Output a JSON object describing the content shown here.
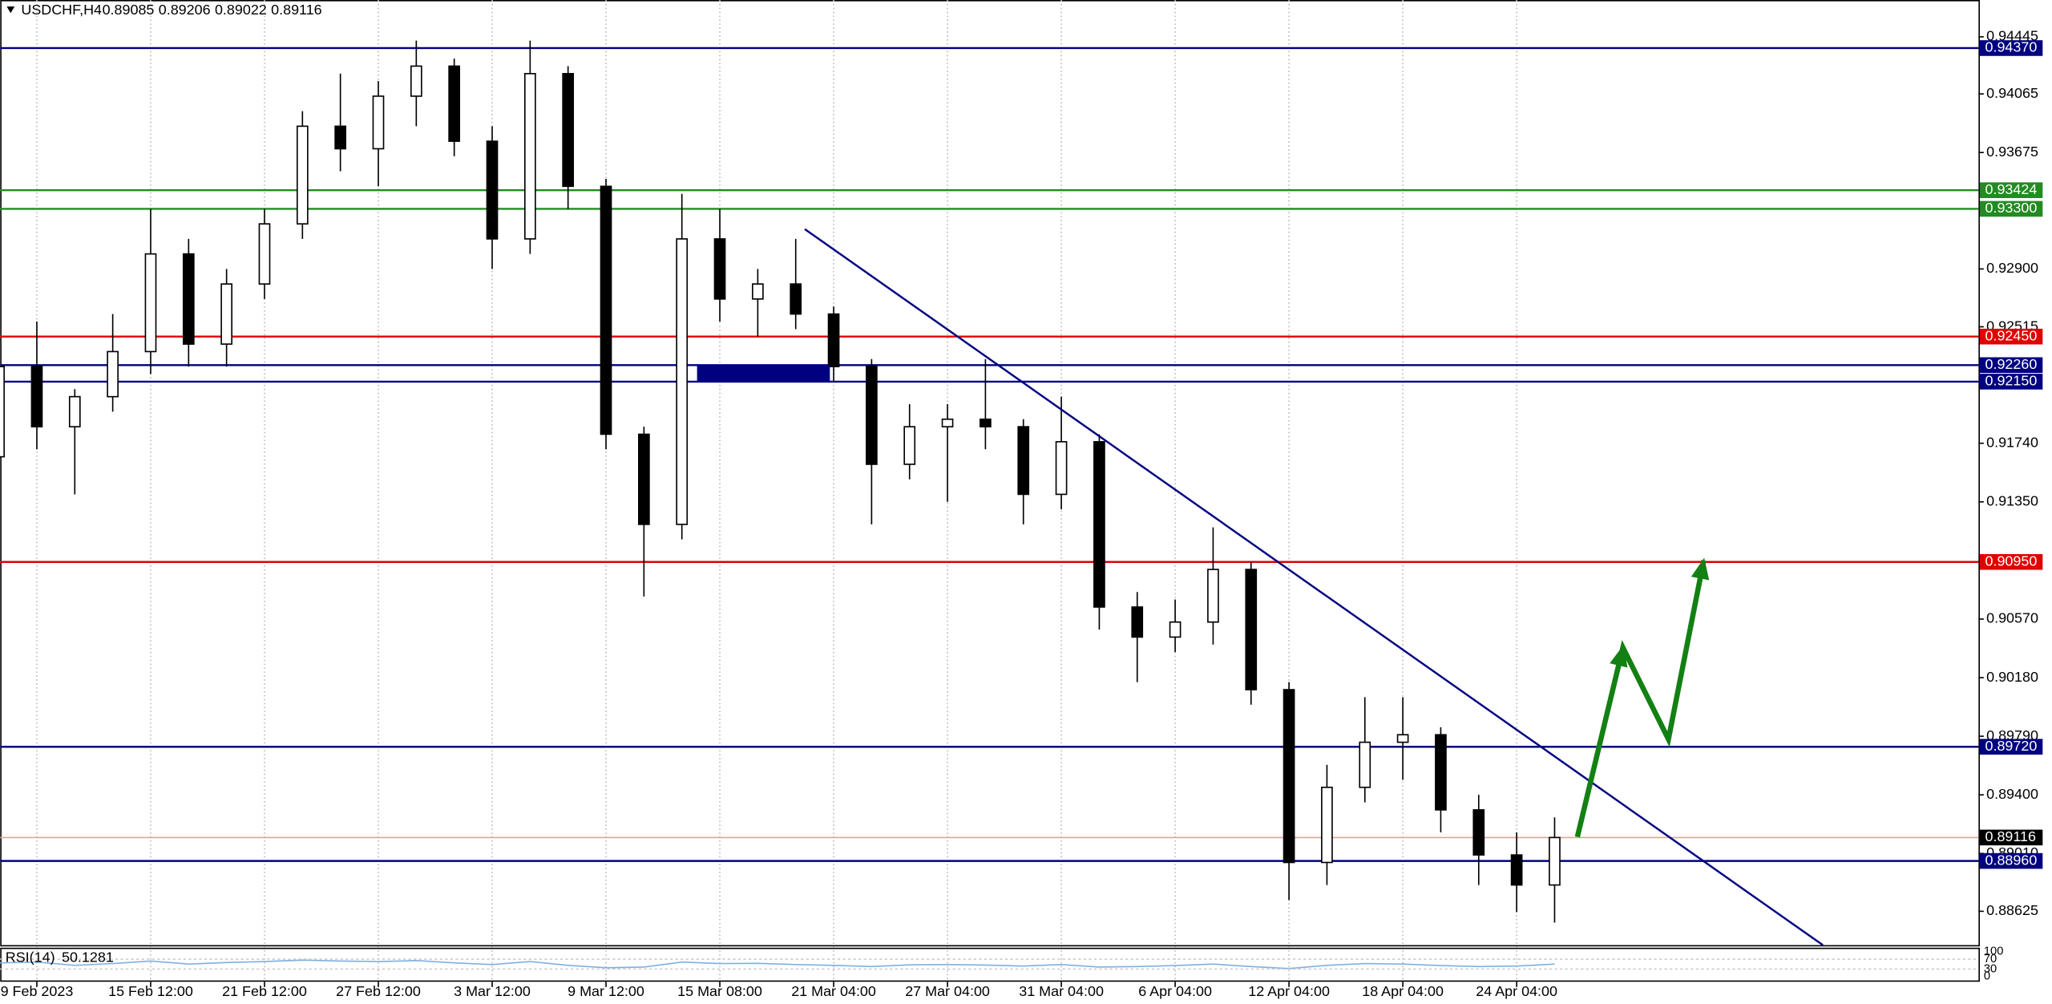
{
  "chart_data": {
    "type": "candlestick",
    "header": {
      "symbol": "USDCHF,H4",
      "open": 0.89085,
      "high": 0.89206,
      "low": 0.89022,
      "close": 0.89116
    },
    "categories": [
      null,
      "9 Feb 2023",
      null,
      null,
      "15 Feb 12:00",
      null,
      null,
      "21 Feb 12:00",
      null,
      null,
      "27 Feb 12:00",
      null,
      null,
      "3 Mar 12:00",
      null,
      null,
      "9 Mar 12:00",
      null,
      null,
      "15 Mar 08:00",
      null,
      null,
      "21 Mar 04:00",
      null,
      null,
      "27 Mar 04:00",
      null,
      null,
      "31 Mar 04:00",
      null,
      null,
      "6 Apr 04:00",
      null,
      null,
      "12 Apr 04:00",
      null,
      null,
      "18 Apr 04:00",
      null,
      null,
      "24 Apr 04:00",
      null
    ],
    "open": [
      0.9165,
      0.9225,
      0.9185,
      0.9205,
      0.9235,
      0.93,
      0.924,
      0.928,
      0.932,
      0.9385,
      0.937,
      0.9405,
      0.9425,
      0.9375,
      0.931,
      0.942,
      0.9345,
      0.918,
      0.912,
      0.931,
      0.927,
      0.928,
      0.926,
      0.9225,
      0.916,
      0.9185,
      0.919,
      0.9185,
      0.914,
      0.9175,
      0.9065,
      0.9045,
      0.9055,
      0.909,
      0.901,
      0.8895,
      0.8945,
      0.8975,
      0.898,
      0.893,
      0.89,
      0.888
    ],
    "high": [
      0.9235,
      0.9255,
      0.921,
      0.926,
      0.933,
      0.931,
      0.929,
      0.933,
      0.9395,
      0.942,
      0.9415,
      0.9442,
      0.943,
      0.9385,
      0.9442,
      0.9425,
      0.935,
      0.9185,
      0.934,
      0.933,
      0.929,
      0.931,
      0.9265,
      0.923,
      0.92,
      0.92,
      0.923,
      0.919,
      0.9205,
      0.918,
      0.9075,
      0.907,
      0.9118,
      0.9095,
      0.9015,
      0.896,
      0.9005,
      0.9005,
      0.8985,
      0.894,
      0.8915,
      0.8925
    ],
    "low": [
      0.916,
      0.917,
      0.914,
      0.9195,
      0.922,
      0.9225,
      0.9225,
      0.927,
      0.931,
      0.9355,
      0.9345,
      0.9385,
      0.9365,
      0.929,
      0.93,
      0.933,
      0.917,
      0.9072,
      0.911,
      0.9255,
      0.9245,
      0.925,
      0.9215,
      0.912,
      0.915,
      0.9135,
      0.917,
      0.912,
      0.913,
      0.905,
      0.9015,
      0.9035,
      0.904,
      0.9,
      0.887,
      0.888,
      0.8935,
      0.895,
      0.8915,
      0.888,
      0.8862,
      0.8855
    ],
    "close": [
      0.9225,
      0.9185,
      0.9205,
      0.9235,
      0.93,
      0.924,
      0.928,
      0.932,
      0.9385,
      0.937,
      0.9405,
      0.9425,
      0.9375,
      0.931,
      0.942,
      0.9345,
      0.918,
      0.912,
      0.931,
      0.927,
      0.928,
      0.926,
      0.9225,
      0.916,
      0.9185,
      0.919,
      0.9185,
      0.914,
      0.9175,
      0.9065,
      0.9045,
      0.9055,
      0.909,
      0.901,
      0.8895,
      0.8945,
      0.8975,
      0.898,
      0.893,
      0.89,
      0.888,
      0.89116
    ],
    "ylim": [
      0.884,
      0.9469
    ],
    "yticks": [
      0.94445,
      0.94065,
      0.93675,
      {
        "value": 0.929,
        "label": "0.92900"
      },
      0.92515,
      {
        "value": 0.9174,
        "label": "0.91740"
      },
      {
        "value": 0.9135,
        "label": "0.91350"
      },
      {
        "value": 0.9096,
        "label": "0.90960"
      },
      {
        "value": 0.9057,
        "label": "0.90570"
      },
      {
        "value": 0.9018,
        "label": "0.90180"
      },
      {
        "value": 0.8979,
        "label": "0.89790"
      },
      {
        "value": 0.894,
        "label": "0.89400"
      },
      {
        "value": 0.8901,
        "label": "0.89010"
      },
      0.88625
    ],
    "levels": [
      {
        "value": 0.9437,
        "label": "0.94370",
        "color": "#000080"
      },
      {
        "value": 0.93424,
        "label": "0.93424",
        "color": "#228b22"
      },
      {
        "value": 0.933,
        "label": "0.93300",
        "color": "#228b22"
      },
      {
        "value": 0.9245,
        "label": "0.92450",
        "color": "#e00000"
      },
      {
        "value": 0.9226,
        "label": "0.92260",
        "color": "#000080"
      },
      {
        "value": 0.9215,
        "label": "0.92150",
        "color": "#000080"
      },
      {
        "value": 0.9095,
        "label": "0.90950",
        "color": "#e00000"
      },
      {
        "value": 0.8972,
        "label": "0.89720",
        "color": "#000080"
      },
      {
        "value": 0.8896,
        "label": "0.88960",
        "color": "#000080"
      }
    ],
    "current_price": 0.89116,
    "zone": {
      "x": [
        18.4,
        21.9
      ],
      "y": [
        0.9215,
        0.9226
      ],
      "color": "#000080"
    },
    "trendline": {
      "x": [
        21.24,
        48.07
      ],
      "y": [
        0.93165,
        0.884
      ],
      "color": "#000080"
    },
    "arrow": {
      "x": [
        41.6,
        42.8,
        44.0,
        44.93
      ],
      "y": [
        0.8912,
        0.9038,
        0.8977,
        0.9096
      ],
      "color": "#138013"
    },
    "rsi": {
      "label": "RSI(14)",
      "value": 50.1281,
      "ylim": [
        0,
        100
      ],
      "yticks": [
        100,
        70,
        30,
        0
      ],
      "values": [
        55,
        58,
        45,
        52,
        62,
        50,
        56,
        60,
        66,
        62,
        60,
        64,
        55,
        48,
        60,
        45,
        35,
        38,
        58,
        52,
        53,
        48,
        45,
        40,
        47,
        48,
        46,
        42,
        48,
        38,
        40,
        44,
        50,
        40,
        32,
        45,
        52,
        50,
        44,
        40,
        42,
        50.1281
      ]
    }
  }
}
